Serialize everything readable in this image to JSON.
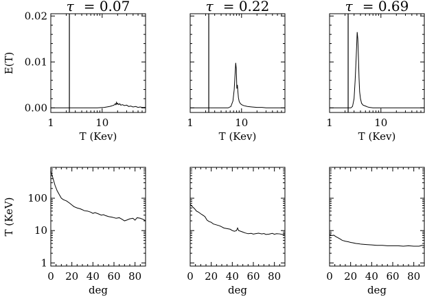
{
  "chart_data": [
    {
      "type": "line",
      "title_symbol": "τ",
      "title_value": "= 0.07",
      "xlabel": "T (Kev)",
      "ylabel": "E(T)",
      "xscale": "log",
      "xlim": [
        1,
        70
      ],
      "ylim": [
        -0.001,
        0.0205
      ],
      "xticks": [
        {
          "v": 1,
          "label": "1"
        },
        {
          "v": 10,
          "label": "10"
        }
      ],
      "yticks": [
        {
          "v": 0.0,
          "label": "0.00"
        },
        {
          "v": 0.01,
          "label": "0.01"
        },
        {
          "v": 0.02,
          "label": "0.02"
        }
      ],
      "vline": 2.3,
      "series": [
        {
          "x": [
            1,
            8,
            11,
            14,
            15,
            16,
            17,
            18,
            18.5,
            19,
            19.5,
            20,
            21,
            22,
            23,
            25,
            27,
            30,
            33,
            36,
            40,
            45,
            50,
            55,
            60,
            70
          ],
          "y": [
            0,
            0,
            0.0001,
            0.0003,
            0.0004,
            0.0005,
            0.0006,
            0.0009,
            0.0007,
            0.0012,
            0.0008,
            0.001,
            0.0007,
            0.0009,
            0.0006,
            0.0007,
            0.0005,
            0.0006,
            0.0003,
            0.0004,
            0.0002,
            0.0003,
            0.0001,
            0.0002,
            0.0001,
            0.0001
          ]
        }
      ]
    },
    {
      "type": "line",
      "title_symbol": "τ",
      "title_value": "= 0.22",
      "xlabel": "T (Kev)",
      "ylabel": "",
      "xscale": "log",
      "xlim": [
        1,
        70
      ],
      "ylim": [
        -0.001,
        0.0205
      ],
      "xticks": [
        {
          "v": 1,
          "label": "1"
        },
        {
          "v": 10,
          "label": "10"
        }
      ],
      "yticks": [
        {
          "v": 0.0,
          "label": ""
        },
        {
          "v": 0.01,
          "label": ""
        },
        {
          "v": 0.02,
          "label": ""
        }
      ],
      "vline": 2.3,
      "series": [
        {
          "x": [
            1,
            5.5,
            6.2,
            6.8,
            7.2,
            7.5,
            7.7,
            7.9,
            8.1,
            8.3,
            8.5,
            8.7,
            9.0,
            9.4,
            10,
            11,
            13,
            16,
            20,
            25,
            30,
            40,
            50,
            70
          ],
          "y": [
            0,
            0,
            0.0003,
            0.0015,
            0.004,
            0.0075,
            0.0098,
            0.0085,
            0.0042,
            0.005,
            0.0035,
            0.0022,
            0.0014,
            0.001,
            0.0007,
            0.0005,
            0.0003,
            0.0002,
            0.0001,
            0.0001,
            0,
            0,
            0,
            0
          ]
        }
      ]
    },
    {
      "type": "line",
      "title_symbol": "τ",
      "title_value": "= 0.69",
      "xlabel": "T (Kev)",
      "ylabel": "",
      "xscale": "log",
      "xlim": [
        1,
        70
      ],
      "ylim": [
        -0.001,
        0.0205
      ],
      "xticks": [
        {
          "v": 1,
          "label": "1"
        },
        {
          "v": 10,
          "label": "10"
        }
      ],
      "yticks": [
        {
          "v": 0.0,
          "label": ""
        },
        {
          "v": 0.01,
          "label": ""
        },
        {
          "v": 0.02,
          "label": ""
        }
      ],
      "vline": 2.3,
      "series": [
        {
          "x": [
            1,
            2.6,
            2.8,
            3.0,
            3.15,
            3.3,
            3.45,
            3.55,
            3.65,
            3.75,
            3.85,
            4.0,
            4.2,
            4.5,
            5.0,
            5.5,
            6,
            7,
            10,
            20,
            70
          ],
          "y": [
            0,
            0,
            0.0003,
            0.002,
            0.006,
            0.011,
            0.0165,
            0.015,
            0.011,
            0.0065,
            0.0035,
            0.002,
            0.001,
            0.0006,
            0.0004,
            0.0002,
            0.0001,
            0,
            0,
            0,
            0
          ]
        }
      ]
    },
    {
      "type": "line",
      "xlabel": "deg",
      "ylabel": "T (KeV)",
      "yscale": "log",
      "xlim": [
        0,
        90
      ],
      "ylim": [
        0.8,
        900
      ],
      "xticks": [
        {
          "v": 0,
          "label": "0"
        },
        {
          "v": 20,
          "label": "20"
        },
        {
          "v": 40,
          "label": "40"
        },
        {
          "v": 60,
          "label": "60"
        },
        {
          "v": 80,
          "label": "80"
        }
      ],
      "yticks": [
        {
          "v": 1,
          "label": "1"
        },
        {
          "v": 10,
          "label": "10"
        },
        {
          "v": 100,
          "label": "100"
        }
      ],
      "series": [
        {
          "x": [
            0,
            2,
            4,
            6,
            8,
            10,
            12,
            15,
            18,
            20,
            22,
            25,
            28,
            30,
            32,
            35,
            38,
            40,
            42,
            45,
            48,
            50,
            52,
            55,
            58,
            60,
            62,
            65,
            68,
            70,
            72,
            75,
            78,
            80,
            82,
            85,
            88,
            90
          ],
          "y": [
            700,
            420,
            250,
            170,
            130,
            100,
            90,
            82,
            70,
            62,
            55,
            50,
            47,
            44,
            41,
            40,
            37,
            34,
            36,
            33,
            30,
            31,
            29,
            27,
            26,
            25,
            24,
            25,
            22,
            20,
            21,
            23,
            24,
            21,
            25,
            24,
            22,
            20
          ]
        }
      ]
    },
    {
      "type": "line",
      "xlabel": "deg",
      "ylabel": "",
      "yscale": "log",
      "xlim": [
        0,
        90
      ],
      "ylim": [
        0.8,
        900
      ],
      "xticks": [
        {
          "v": 0,
          "label": "0"
        },
        {
          "v": 20,
          "label": "20"
        },
        {
          "v": 40,
          "label": "40"
        },
        {
          "v": 60,
          "label": "60"
        },
        {
          "v": 80,
          "label": "80"
        }
      ],
      "yticks": [
        {
          "v": 1,
          "label": ""
        },
        {
          "v": 10,
          "label": ""
        },
        {
          "v": 100,
          "label": ""
        }
      ],
      "series": [
        {
          "x": [
            0,
            2,
            4,
            6,
            8,
            10,
            12,
            14,
            16,
            18,
            20,
            22,
            25,
            28,
            30,
            32,
            35,
            38,
            40,
            42,
            44,
            45,
            46,
            48,
            50,
            52,
            55,
            58,
            60,
            62,
            65,
            68,
            70,
            72,
            75,
            78,
            80,
            82,
            85,
            88,
            90
          ],
          "y": [
            65,
            55,
            48,
            40,
            37,
            33,
            30,
            27,
            21,
            19,
            18,
            16,
            15,
            14,
            13,
            12,
            11.5,
            11,
            10,
            9.5,
            10,
            12,
            10,
            9.5,
            9,
            8.5,
            8,
            8.2,
            7.8,
            8,
            8.3,
            7.9,
            8.1,
            7.6,
            7.8,
            8.2,
            7.7,
            8,
            7.9,
            7.5,
            7.8
          ]
        }
      ]
    },
    {
      "type": "line",
      "xlabel": "deg",
      "ylabel": "",
      "yscale": "log",
      "xlim": [
        0,
        90
      ],
      "ylim": [
        0.8,
        900
      ],
      "xticks": [
        {
          "v": 0,
          "label": "0"
        },
        {
          "v": 20,
          "label": "20"
        },
        {
          "v": 40,
          "label": "40"
        },
        {
          "v": 60,
          "label": "60"
        },
        {
          "v": 80,
          "label": "80"
        }
      ],
      "yticks": [
        {
          "v": 1,
          "label": ""
        },
        {
          "v": 10,
          "label": ""
        },
        {
          "v": 100,
          "label": ""
        }
      ],
      "series": [
        {
          "x": [
            0,
            2,
            4,
            6,
            8,
            10,
            12,
            15,
            18,
            20,
            22,
            25,
            28,
            30,
            35,
            40,
            45,
            50,
            55,
            60,
            65,
            70,
            75,
            80,
            85,
            88,
            90
          ],
          "y": [
            7.5,
            7,
            7.2,
            6.5,
            6,
            5.5,
            5,
            4.7,
            4.5,
            4.3,
            4.2,
            4.0,
            3.9,
            3.8,
            3.7,
            3.6,
            3.5,
            3.5,
            3.4,
            3.4,
            3.4,
            3.3,
            3.4,
            3.3,
            3.3,
            3.5,
            3.4
          ]
        }
      ]
    }
  ]
}
